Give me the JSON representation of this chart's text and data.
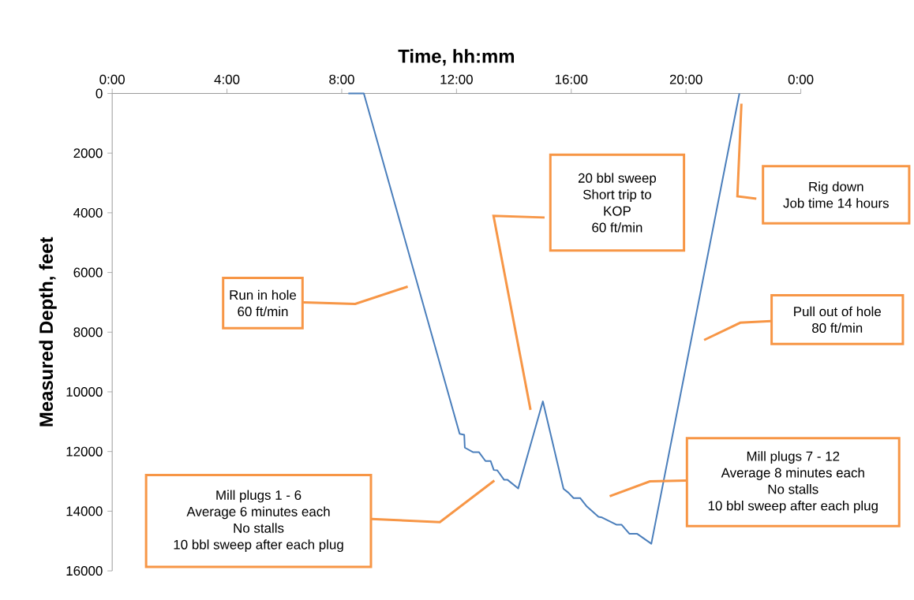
{
  "chart_data": {
    "type": "line",
    "xlabel": "Time, hh:mm",
    "ylabel": "Measured Depth, feet",
    "x": [
      8.23,
      8.77,
      12.11,
      12.27,
      12.29,
      12.57,
      12.78,
      13.01,
      13.19,
      13.3,
      13.42,
      13.66,
      13.78,
      14.15,
      15.01,
      15.73,
      15.9,
      16.08,
      16.31,
      16.54,
      16.95,
      17.07,
      17.57,
      17.75,
      18.03,
      18.3,
      18.79,
      21.86
    ],
    "series": [
      {
        "color": "#4a7ebb",
        "values": [
          0,
          0,
          11410,
          11440,
          11870,
          12020,
          12020,
          12320,
          12320,
          12620,
          12630,
          12950,
          12950,
          13240,
          10320,
          13250,
          13380,
          13560,
          13560,
          13840,
          14190,
          14210,
          14450,
          14450,
          14760,
          14760,
          15090,
          0
        ]
      }
    ],
    "xlim": [
      0,
      24
    ],
    "xticks": [
      {
        "value": 0,
        "label": "0:00"
      },
      {
        "value": 4,
        "label": "4:00"
      },
      {
        "value": 8,
        "label": "8:00"
      },
      {
        "value": 12,
        "label": "12:00"
      },
      {
        "value": 16,
        "label": "16:00"
      },
      {
        "value": 20,
        "label": "20:00"
      },
      {
        "value": 24,
        "label": "0:00"
      }
    ],
    "ylim": [
      16000,
      0
    ],
    "yticks": [
      0,
      2000,
      4000,
      6000,
      8000,
      10000,
      12000,
      14000,
      16000
    ],
    "annotations": [
      "20 bbl sweep",
      "Short trip to",
      "KOP",
      "60 ft/min",
      "Rig down",
      "Job time 14 hours",
      "Run in hole",
      "60 ft/min",
      "Pull out of hole",
      "80 ft/min",
      "Mill plugs 7 - 12",
      "Average 8 minutes each",
      "No stalls",
      "10 bbl sweep after each plug",
      "Mill plugs 1 - 6",
      "Average 6 minutes each",
      "No stalls",
      "10 bbl sweep after each plug"
    ]
  }
}
